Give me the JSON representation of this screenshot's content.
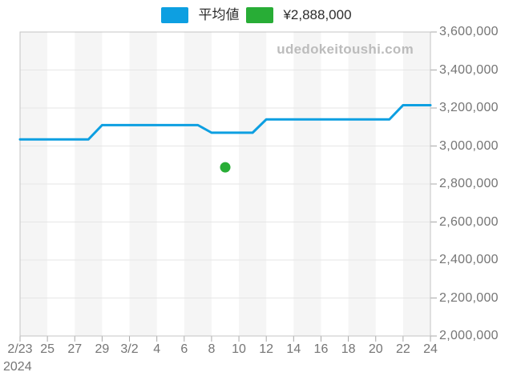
{
  "legend": {
    "items": [
      {
        "label": "平均値",
        "color": "#0d9fe1"
      },
      {
        "label": "¥2,888,000",
        "color": "#28ad36"
      }
    ]
  },
  "watermark": "udedokeitoushi.com",
  "colors": {
    "line": "#0d9fe1",
    "point": "#28ad36",
    "band": "#f5f5f5",
    "gridline": "#e6e6e6",
    "border": "#c4c4c4",
    "tick": "#a8a8a8",
    "axis_text": "#757575",
    "watermark_text": "#bcbcbc"
  },
  "chart_data": {
    "type": "line",
    "title": "",
    "xlabel": "",
    "ylabel": "",
    "x": [
      "2/23",
      "2/24",
      "2/25",
      "2/26",
      "2/27",
      "2/28",
      "2/29",
      "3/1",
      "3/2",
      "3/3",
      "3/4",
      "3/5",
      "3/6",
      "3/7",
      "3/8",
      "3/9",
      "3/10",
      "3/11",
      "3/12",
      "3/13",
      "3/14",
      "3/15",
      "3/16",
      "3/17",
      "3/18",
      "3/19",
      "3/20",
      "3/21",
      "3/22",
      "3/23",
      "3/24"
    ],
    "series": [
      {
        "name": "平均値",
        "type": "line",
        "color": "#0d9fe1",
        "values": [
          3035000,
          3035000,
          3035000,
          3035000,
          3035000,
          3035000,
          3110000,
          3110000,
          3110000,
          3110000,
          3110000,
          3110000,
          3110000,
          3110000,
          3070000,
          3070000,
          3070000,
          3070000,
          3140000,
          3140000,
          3140000,
          3140000,
          3140000,
          3140000,
          3140000,
          3140000,
          3140000,
          3140000,
          3215000,
          3215000,
          3215000
        ]
      },
      {
        "name": "¥2,888,000",
        "type": "scatter",
        "color": "#28ad36",
        "points": [
          {
            "x": "3/9",
            "value": 2888000
          }
        ]
      }
    ],
    "x_tick_labels": [
      "2/23",
      "25",
      "27",
      "29",
      "3/2",
      "4",
      "6",
      "8",
      "10",
      "12",
      "14",
      "16",
      "18",
      "20",
      "22",
      "24"
    ],
    "x_year_label": "2024",
    "y_ticks": [
      2000000,
      2200000,
      2400000,
      2600000,
      2800000,
      3000000,
      3200000,
      3400000,
      3600000
    ],
    "y_tick_labels": [
      "2,000,000",
      "2,200,000",
      "2,400,000",
      "2,600,000",
      "2,800,000",
      "3,000,000",
      "3,200,000",
      "3,400,000",
      "3,600,000"
    ],
    "ylim": [
      2000000,
      3600000
    ],
    "grid": true,
    "legend_position": "top",
    "alternating_bands": true
  }
}
